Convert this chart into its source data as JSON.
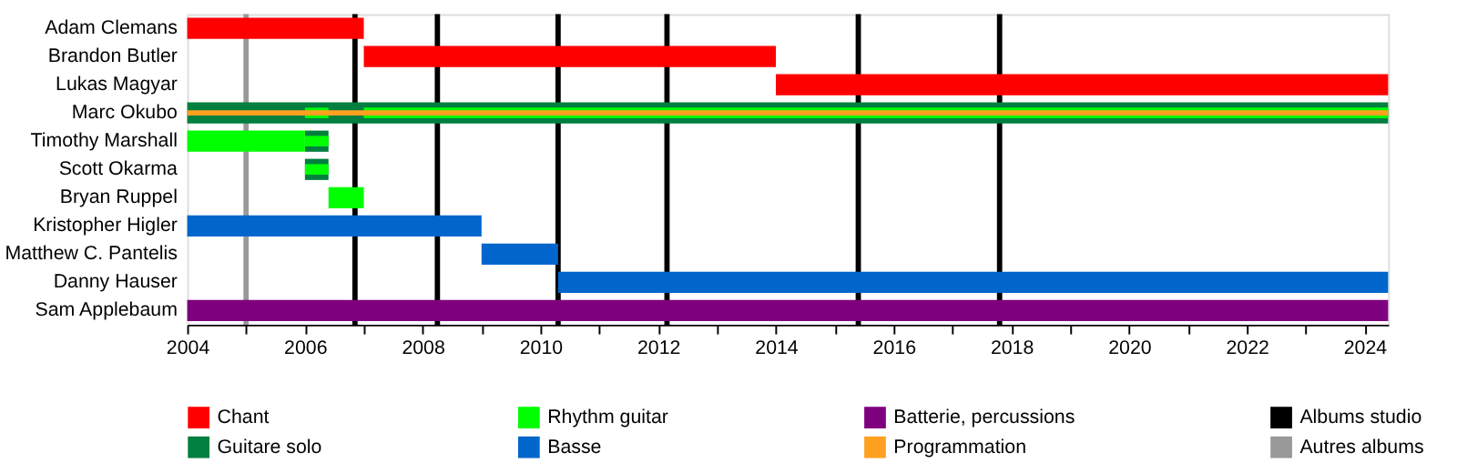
{
  "chart_data": {
    "type": "bar",
    "orientation": "horizontal",
    "categories": [
      "Adam Clemans",
      "Brandon Butler",
      "Lukas Magyar",
      "Marc Okubo",
      "Timothy Marshall",
      "Scott Okarma",
      "Bryan Ruppel",
      "Kristopher Higler",
      "Matthew C. Pantelis",
      "Danny Hauser",
      "Sam Applebaum"
    ],
    "series": [
      {
        "name": "Chant",
        "color": "#ff0000",
        "values": [
          3.0,
          7.0,
          10.4,
          null,
          null,
          null,
          null,
          null,
          null,
          null,
          null
        ],
        "base": [
          2004,
          2007.0,
          2014.0,
          null,
          null,
          null,
          null,
          null,
          null,
          null,
          null
        ]
      },
      {
        "name": "Guitare solo",
        "color": "#007f3f",
        "values": [
          null,
          null,
          null,
          20.4,
          0.4,
          0.4,
          null,
          null,
          null,
          null,
          null
        ],
        "base": [
          null,
          null,
          null,
          2004,
          2006.0,
          2006.0,
          null,
          null,
          null,
          null,
          null
        ]
      },
      {
        "name": "Rhythm guitar",
        "color": "#00ff00",
        "values": [
          null,
          null,
          null,
          0.4,
          2.0,
          null,
          0.6,
          null,
          null,
          null,
          null
        ],
        "base": [
          null,
          null,
          null,
          2006.0,
          2004,
          null,
          2006.4,
          null,
          null,
          null,
          null
        ]
      },
      {
        "color": "#00ff00",
        "values": [
          null,
          null,
          null,
          17.4,
          0.4,
          0.4,
          null,
          null,
          null,
          null,
          null
        ],
        "base": [
          null,
          null,
          null,
          2007.0,
          2006.0,
          2006.0,
          null,
          null,
          null,
          null,
          null
        ]
      },
      {
        "name": "Basse",
        "color": "#0066cc",
        "values": [
          null,
          null,
          null,
          null,
          null,
          null,
          null,
          5.0,
          1.3,
          14.1,
          null
        ],
        "base": [
          null,
          null,
          null,
          null,
          null,
          null,
          null,
          2004,
          2009.0,
          2010.3,
          null
        ]
      },
      {
        "name": "Batterie, percussions",
        "color": "#7f007f",
        "values": [
          null,
          null,
          null,
          null,
          null,
          null,
          null,
          null,
          null,
          null,
          20.4
        ],
        "base": [
          null,
          null,
          null,
          null,
          null,
          null,
          null,
          null,
          null,
          null,
          2004
        ]
      },
      {
        "name": "Programmation",
        "color": "#ffa020",
        "values": [
          null,
          null,
          null,
          20.4,
          null,
          null,
          null,
          null,
          null,
          null,
          null
        ],
        "base": [
          null,
          null,
          null,
          2004,
          null,
          null,
          null,
          null,
          null,
          null,
          null
        ]
      }
    ],
    "xlim": [
      2004,
      2024.4
    ],
    "xticks": [
      2004,
      {
        "value": 2005,
        "label": null
      },
      2006,
      {
        "value": 2007,
        "label": null
      },
      2008,
      {
        "value": 2009,
        "label": null
      },
      2010,
      {
        "value": 2011,
        "label": null
      },
      2012,
      {
        "value": 2013,
        "label": null
      },
      2014,
      {
        "value": 2015,
        "label": null
      },
      2016,
      {
        "value": 2017,
        "label": null
      },
      2018,
      {
        "value": 2019,
        "label": null
      },
      2020,
      {
        "value": 2021,
        "label": null
      },
      2022,
      {
        "value": 2023,
        "label": null
      },
      2024
    ],
    "ref_lines": [
      {
        "axis": "x",
        "value": 2006.85,
        "label": "Albums studio",
        "color": "#000000"
      },
      {
        "axis": "x",
        "value": 2008.25,
        "color": "#000000"
      },
      {
        "axis": "x",
        "value": 2010.3,
        "color": "#000000"
      },
      {
        "axis": "x",
        "value": 2012.15,
        "color": "#000000"
      },
      {
        "axis": "x",
        "value": 2015.4,
        "color": "#000000"
      },
      {
        "axis": "x",
        "value": 2017.8,
        "color": "#000000"
      },
      {
        "axis": "x",
        "value": 2005.0,
        "label": "Autres albums",
        "color": "#999999"
      }
    ],
    "grid": false,
    "legend": "bottom"
  }
}
